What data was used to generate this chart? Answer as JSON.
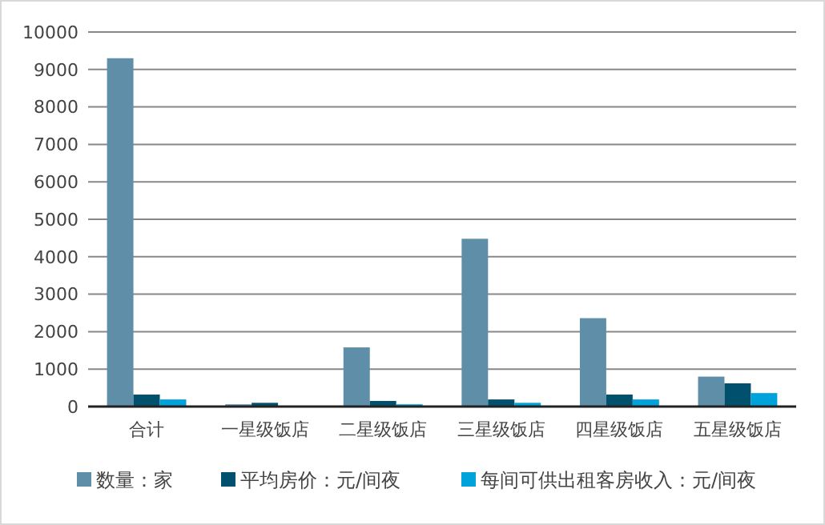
{
  "chart_data": {
    "type": "bar",
    "categories": [
      "合计",
      "一星级饭店",
      "二星级饭店",
      "三星级饭店",
      "四星级饭店",
      "五星级饭店"
    ],
    "series": [
      {
        "name": "数量：家",
        "color": "#5f8fa8",
        "values": [
          9300,
          60,
          1580,
          4480,
          2360,
          800
        ]
      },
      {
        "name": "平均房价：元/间夜",
        "color": "#00506e",
        "values": [
          320,
          100,
          150,
          190,
          320,
          620
        ]
      },
      {
        "name": "每间可供出租客房收入：元/间夜",
        "color": "#00a2dc",
        "values": [
          190,
          null,
          60,
          100,
          190,
          360
        ]
      }
    ],
    "ylim": [
      0,
      10000
    ],
    "yticks": [
      0,
      1000,
      2000,
      3000,
      4000,
      5000,
      6000,
      7000,
      8000,
      9000,
      10000
    ],
    "grid": "y",
    "legend": "bottom"
  }
}
